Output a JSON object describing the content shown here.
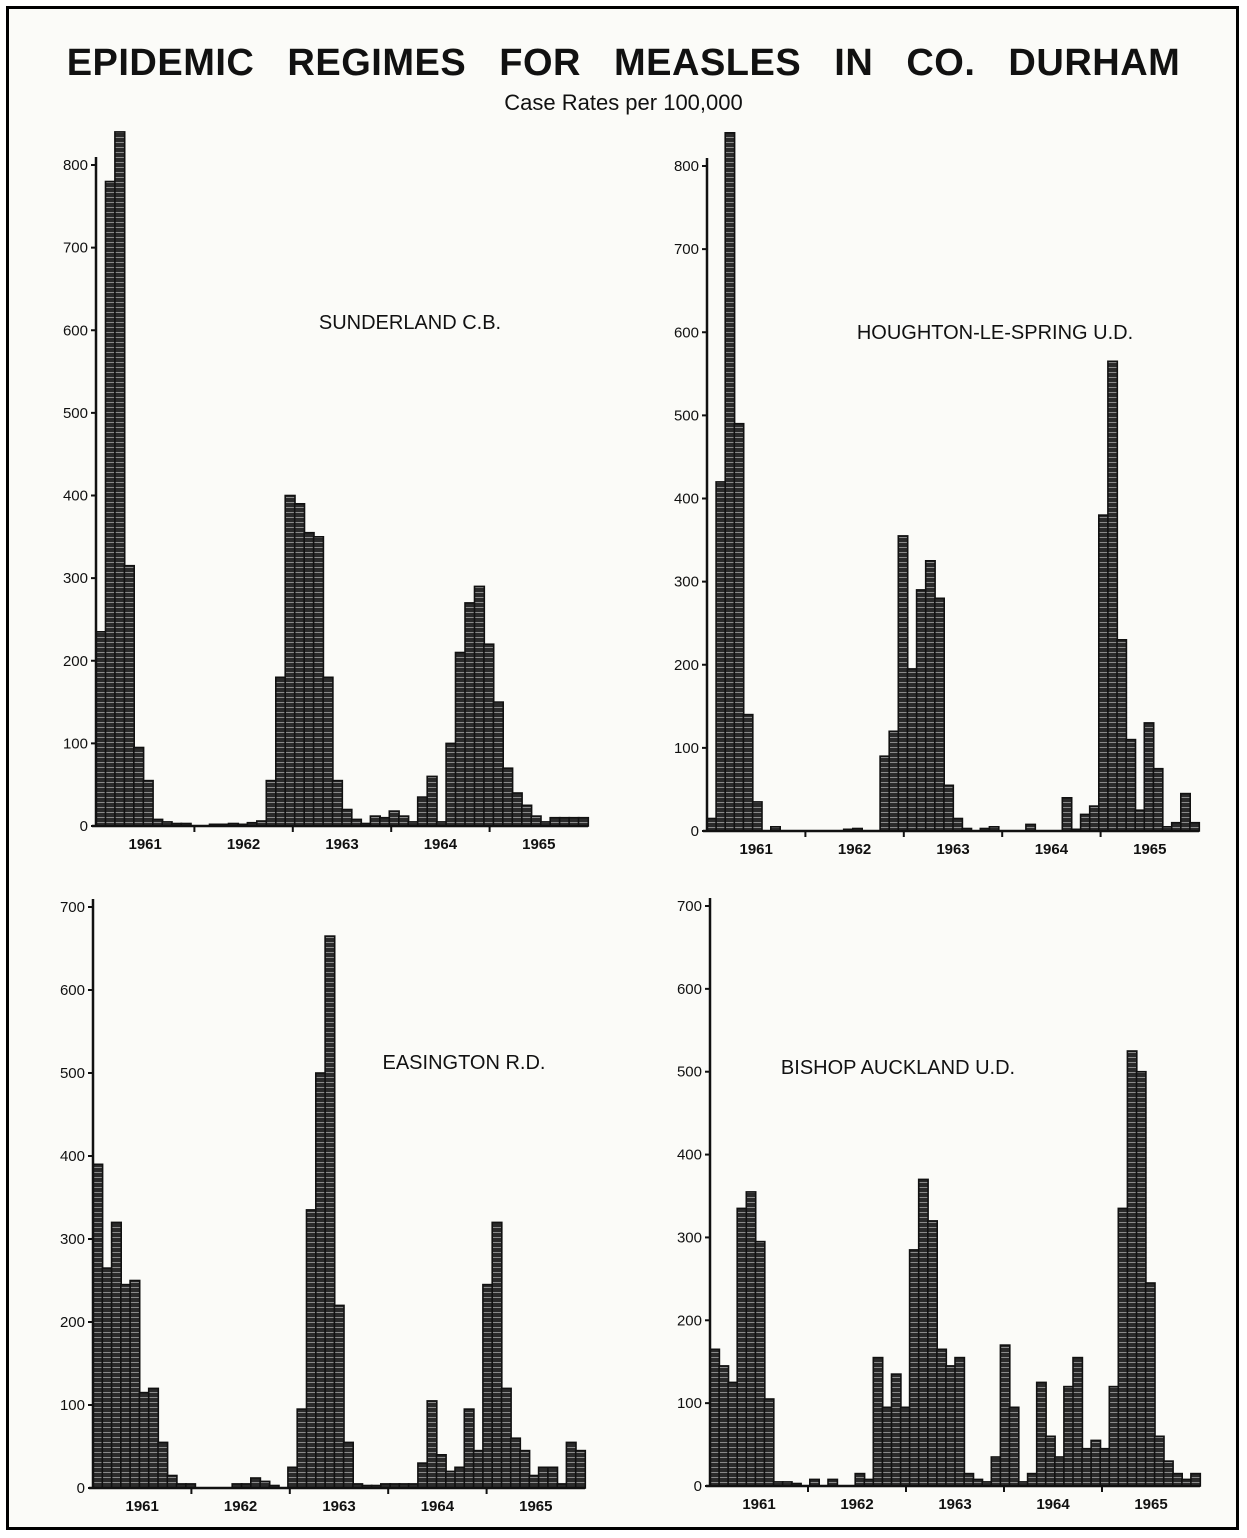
{
  "title": "EPIDEMIC REGIMES FOR MEASLES IN CO. DURHAM",
  "subtitle": "Case Rates per 100,000",
  "chart_data": [
    {
      "type": "bar",
      "title": "SUNDERLAND C.B.",
      "x_tick_labels": [
        "1961",
        "1962",
        "1963",
        "1964",
        "1965"
      ],
      "ylim": [
        0,
        800
      ],
      "yticks": [
        0,
        100,
        200,
        300,
        400,
        500,
        600,
        700,
        800
      ],
      "values": [
        235,
        780,
        840,
        315,
        95,
        55,
        8,
        5,
        3,
        3,
        0,
        0,
        2,
        2,
        3,
        2,
        4,
        6,
        55,
        180,
        400,
        390,
        355,
        350,
        180,
        55,
        20,
        8,
        3,
        12,
        10,
        18,
        12,
        5,
        35,
        60,
        5,
        100,
        210,
        270,
        290,
        220,
        150,
        70,
        40,
        25,
        12,
        5,
        10,
        10,
        10,
        10
      ]
    },
    {
      "type": "bar",
      "title": "HOUGHTON-LE-SPRING U.D.",
      "x_tick_labels": [
        "1961",
        "1962",
        "1963",
        "1964",
        "1965"
      ],
      "ylim": [
        0,
        800
      ],
      "yticks": [
        0,
        100,
        200,
        300,
        400,
        500,
        600,
        700,
        800
      ],
      "values": [
        15,
        420,
        840,
        490,
        140,
        35,
        0,
        5,
        0,
        0,
        0,
        0,
        0,
        0,
        0,
        2,
        3,
        0,
        0,
        90,
        120,
        355,
        195,
        290,
        325,
        280,
        55,
        15,
        3,
        0,
        3,
        5,
        0,
        0,
        0,
        8,
        0,
        0,
        0,
        40,
        2,
        20,
        30,
        380,
        565,
        230,
        110,
        25,
        130,
        75,
        5,
        10,
        45,
        10
      ]
    },
    {
      "type": "bar",
      "title": "EASINGTON R.D.",
      "x_tick_labels": [
        "1961",
        "1962",
        "1963",
        "1964",
        "1965"
      ],
      "ylim": [
        0,
        700
      ],
      "yticks": [
        0,
        100,
        200,
        300,
        400,
        500,
        600,
        700
      ],
      "values": [
        390,
        265,
        320,
        245,
        250,
        115,
        120,
        55,
        15,
        5,
        5,
        0,
        0,
        0,
        0,
        5,
        5,
        12,
        8,
        3,
        0,
        25,
        95,
        335,
        500,
        665,
        220,
        55,
        5,
        3,
        3,
        5,
        5,
        5,
        5,
        30,
        105,
        40,
        20,
        25,
        95,
        45,
        245,
        320,
        120,
        60,
        45,
        15,
        25,
        25,
        5,
        55,
        45
      ]
    },
    {
      "type": "bar",
      "title": "BISHOP AUCKLAND U.D.",
      "x_tick_labels": [
        "1961",
        "1962",
        "1963",
        "1964",
        "1965"
      ],
      "ylim": [
        0,
        700
      ],
      "yticks": [
        0,
        100,
        200,
        300,
        400,
        500,
        600,
        700
      ],
      "values": [
        165,
        145,
        125,
        335,
        355,
        295,
        105,
        5,
        5,
        3,
        0,
        8,
        0,
        8,
        0,
        0,
        15,
        8,
        155,
        95,
        135,
        95,
        285,
        370,
        320,
        165,
        145,
        155,
        15,
        8,
        5,
        35,
        170,
        95,
        5,
        15,
        125,
        60,
        35,
        120,
        155,
        45,
        55,
        45,
        120,
        335,
        525,
        500,
        245,
        60,
        30,
        15,
        8,
        15
      ]
    }
  ]
}
